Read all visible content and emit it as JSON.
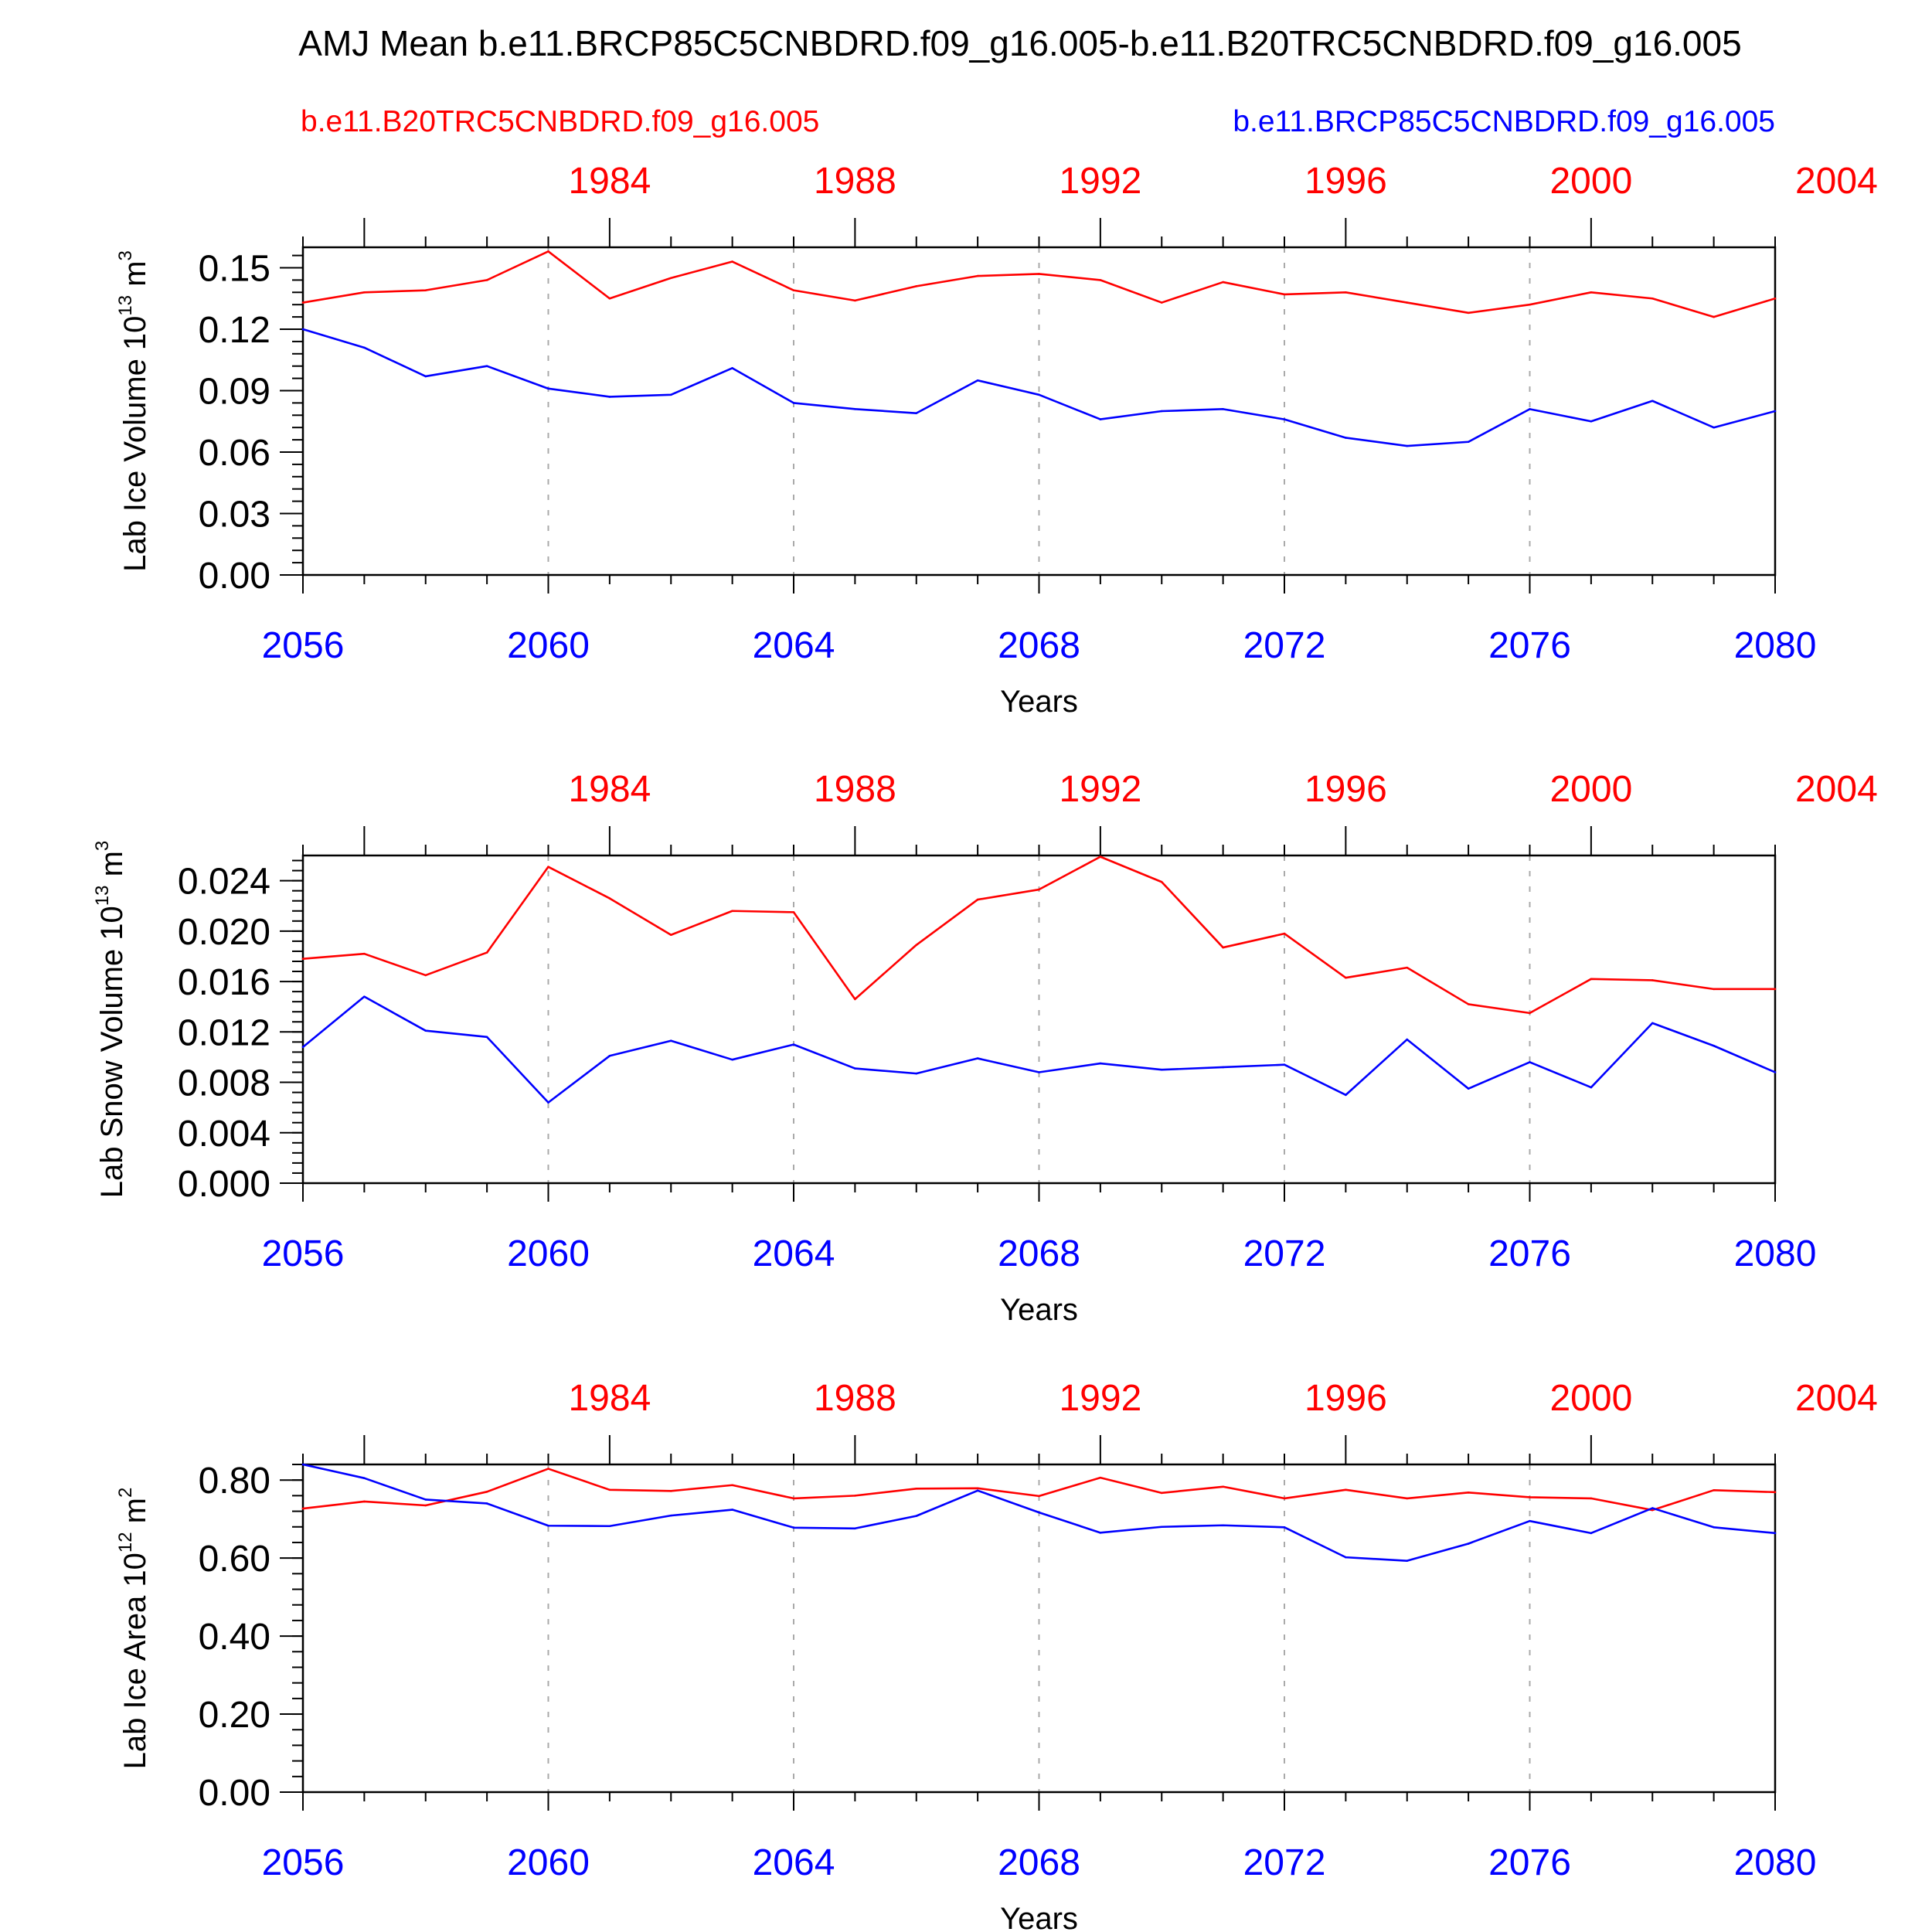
{
  "title": "AMJ Mean b.e11.BRCP85C5CNBDRD.f09_g16.005-b.e11.B20TRC5CNBDRD.f09_g16.005",
  "legend": {
    "left": {
      "label": "b.e11.B20TRC5CNBDRD.f09_g16.005",
      "color": "#ff0000"
    },
    "right": {
      "label": "b.e11.BRCP85C5CNBDRD.f09_g16.005",
      "color": "#0000ff"
    }
  },
  "colors": {
    "historical": "#ff0000",
    "future": "#0000ff"
  },
  "chart_data": [
    {
      "type": "line",
      "ylabel_main": "Lab Ice Volume 10",
      "ylabel_exp": "13",
      "ylabel_unit": " m",
      "ylabel_unit_exp": "3",
      "xlabel": "Years",
      "ylim": [
        0,
        0.16
      ],
      "yticks": [
        "0.00",
        "0.03",
        "0.06",
        "0.09",
        "0.12",
        "0.15"
      ],
      "ytick_values": [
        0,
        0.03,
        0.06,
        0.09,
        0.12,
        0.15
      ],
      "y_minor_step": 0.006,
      "x_bottom_ticks": [
        "2056",
        "2060",
        "2064",
        "2068",
        "2072",
        "2076",
        "2080"
      ],
      "x_top_ticks": [
        "1984",
        "1988",
        "1992",
        "1996",
        "2000",
        "2004"
      ],
      "x_bottom_range": [
        2056,
        2080
      ],
      "x_top_offset": 77,
      "series": [
        {
          "name": "b.e11.B20TRC5CNBDRD.f09_g16.005",
          "color": "#ff0000",
          "x": [
            1979,
            1980,
            1981,
            1982,
            1983,
            1984,
            1985,
            1986,
            1987,
            1988,
            1989,
            1990,
            1991,
            1992,
            1993,
            1994,
            1995,
            1996,
            1997,
            1998,
            1999,
            2000,
            2001,
            2002,
            2003
          ],
          "values": [
            0.133,
            0.138,
            0.139,
            0.144,
            0.158,
            0.135,
            0.145,
            0.153,
            0.139,
            0.134,
            0.141,
            0.146,
            0.147,
            0.144,
            0.133,
            0.143,
            0.137,
            0.138,
            0.133,
            0.128,
            0.132,
            0.138,
            0.135,
            0.126,
            0.135
          ]
        },
        {
          "name": "b.e11.BRCP85C5CNBDRD.f09_g16.005",
          "color": "#0000ff",
          "x": [
            2056,
            2057,
            2058,
            2059,
            2060,
            2061,
            2062,
            2063,
            2064,
            2065,
            2066,
            2067,
            2068,
            2069,
            2070,
            2071,
            2072,
            2073,
            2074,
            2075,
            2076,
            2077,
            2078,
            2079,
            2080
          ],
          "values": [
            0.12,
            0.111,
            0.097,
            0.102,
            0.091,
            0.087,
            0.088,
            0.101,
            0.084,
            0.081,
            0.079,
            0.095,
            0.088,
            0.076,
            0.08,
            0.081,
            0.076,
            0.067,
            0.063,
            0.065,
            0.081,
            0.075,
            0.085,
            0.072,
            0.08
          ]
        }
      ]
    },
    {
      "type": "line",
      "ylabel_main": "Lab Snow Volume 10",
      "ylabel_exp": "13",
      "ylabel_unit": " m",
      "ylabel_unit_exp": "3",
      "xlabel": "Years",
      "ylim": [
        0,
        0.026
      ],
      "yticks": [
        "0.000",
        "0.004",
        "0.008",
        "0.012",
        "0.016",
        "0.020",
        "0.024"
      ],
      "ytick_values": [
        0,
        0.004,
        0.008,
        0.012,
        0.016,
        0.02,
        0.024
      ],
      "y_minor_step": 0.0008,
      "x_bottom_ticks": [
        "2056",
        "2060",
        "2064",
        "2068",
        "2072",
        "2076",
        "2080"
      ],
      "x_top_ticks": [
        "1984",
        "1988",
        "1992",
        "1996",
        "2000",
        "2004"
      ],
      "x_bottom_range": [
        2056,
        2080
      ],
      "x_top_offset": 77,
      "series": [
        {
          "name": "b.e11.B20TRC5CNBDRD.f09_g16.005",
          "color": "#ff0000",
          "x": [
            1979,
            1980,
            1981,
            1982,
            1983,
            1984,
            1985,
            1986,
            1987,
            1988,
            1989,
            1990,
            1991,
            1992,
            1993,
            1994,
            1995,
            1996,
            1997,
            1998,
            1999,
            2000,
            2001,
            2002,
            2003
          ],
          "values": [
            0.0178,
            0.0182,
            0.0165,
            0.0183,
            0.0251,
            0.0226,
            0.0197,
            0.0216,
            0.0215,
            0.0146,
            0.0189,
            0.0225,
            0.0233,
            0.0259,
            0.0239,
            0.0187,
            0.0198,
            0.0163,
            0.0171,
            0.0142,
            0.0135,
            0.0162,
            0.0161,
            0.0154,
            0.0154
          ]
        },
        {
          "name": "b.e11.BRCP85C5CNBDRD.f09_g16.005",
          "color": "#0000ff",
          "x": [
            2056,
            2057,
            2058,
            2059,
            2060,
            2061,
            2062,
            2063,
            2064,
            2065,
            2066,
            2067,
            2068,
            2069,
            2070,
            2071,
            2072,
            2073,
            2074,
            2075,
            2076,
            2077,
            2078,
            2079,
            2080
          ],
          "values": [
            0.0108,
            0.0148,
            0.0121,
            0.0116,
            0.0064,
            0.0101,
            0.0113,
            0.0098,
            0.011,
            0.0091,
            0.0087,
            0.0099,
            0.0088,
            0.0095,
            0.009,
            0.0092,
            0.0094,
            0.007,
            0.0114,
            0.0075,
            0.0096,
            0.0076,
            0.0127,
            0.0109,
            0.0088
          ]
        }
      ]
    },
    {
      "type": "line",
      "ylabel_main": "Lab Ice Area 10",
      "ylabel_exp": "12",
      "ylabel_unit": " m",
      "ylabel_unit_exp": "2",
      "xlabel": "Years",
      "ylim": [
        0,
        0.84
      ],
      "yticks": [
        "0.00",
        "0.20",
        "0.40",
        "0.60",
        "0.80"
      ],
      "ytick_values": [
        0,
        0.2,
        0.4,
        0.6,
        0.8
      ],
      "y_minor_step": 0.04,
      "x_bottom_ticks": [
        "2056",
        "2060",
        "2064",
        "2068",
        "2072",
        "2076",
        "2080"
      ],
      "x_top_ticks": [
        "1984",
        "1988",
        "1992",
        "1996",
        "2000",
        "2004"
      ],
      "x_bottom_range": [
        2056,
        2080
      ],
      "x_top_offset": 77,
      "series": [
        {
          "name": "b.e11.B20TRC5CNBDRD.f09_g16.005",
          "color": "#ff0000",
          "x": [
            1979,
            1980,
            1981,
            1982,
            1983,
            1984,
            1985,
            1986,
            1987,
            1988,
            1989,
            1990,
            1991,
            1992,
            1993,
            1994,
            1995,
            1996,
            1997,
            1998,
            1999,
            2000,
            2001,
            2002,
            2003
          ],
          "values": [
            0.727,
            0.745,
            0.735,
            0.77,
            0.829,
            0.775,
            0.772,
            0.787,
            0.753,
            0.76,
            0.778,
            0.779,
            0.759,
            0.806,
            0.767,
            0.783,
            0.753,
            0.775,
            0.753,
            0.768,
            0.756,
            0.753,
            0.723,
            0.774,
            0.769
          ]
        },
        {
          "name": "b.e11.BRCP85C5CNBDRD.f09_g16.005",
          "color": "#0000ff",
          "x": [
            2056,
            2057,
            2058,
            2059,
            2060,
            2061,
            2062,
            2063,
            2064,
            2065,
            2066,
            2067,
            2068,
            2069,
            2070,
            2071,
            2072,
            2073,
            2074,
            2075,
            2076,
            2077,
            2078,
            2079,
            2080
          ],
          "values": [
            0.84,
            0.805,
            0.75,
            0.74,
            0.683,
            0.682,
            0.709,
            0.724,
            0.678,
            0.676,
            0.708,
            0.773,
            0.717,
            0.665,
            0.68,
            0.684,
            0.679,
            0.602,
            0.593,
            0.637,
            0.695,
            0.664,
            0.728,
            0.679,
            0.664
          ]
        }
      ]
    }
  ]
}
